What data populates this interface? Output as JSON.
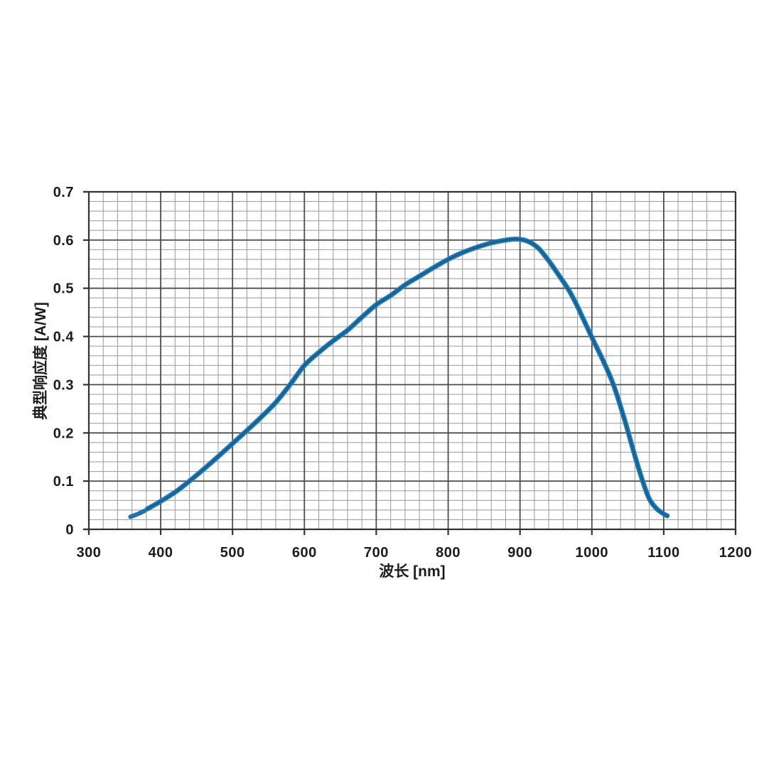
{
  "figure": {
    "background_color": "#ffffff",
    "plot_background_color": "#ffffff"
  },
  "chart_data": {
    "type": "line",
    "title": "",
    "xlabel": "波长 [nm]",
    "ylabel": "典型响应度 [A/W]",
    "xlim": [
      300,
      1200
    ],
    "ylim": [
      0,
      0.7
    ],
    "x_major_ticks": [
      300,
      400,
      500,
      600,
      700,
      800,
      900,
      1000,
      1100,
      1200
    ],
    "y_major_ticks": [
      0,
      0.1,
      0.2,
      0.3,
      0.4,
      0.5,
      0.6,
      0.7
    ],
    "x_minor_step_nm": 20,
    "y_minor_step": 0.02,
    "grid": "major-and-minor",
    "legend_position": "none",
    "grid_minor_color": "#989898",
    "grid_major_color": "#4d4d4d",
    "frame_color": "#333333",
    "tick_color": "#333333",
    "label_color": "#1c1c1c",
    "series": [
      {
        "name": "typical-responsivity",
        "style": "solid",
        "color": "#1b76b0",
        "edge_color": "#2f86b8",
        "core_color": "#135f96",
        "points": [
          [
            381,
            0.042
          ],
          [
            400,
            0.058
          ],
          [
            420,
            0.077
          ],
          [
            440,
            0.1
          ],
          [
            460,
            0.125
          ],
          [
            480,
            0.151
          ],
          [
            500,
            0.178
          ],
          [
            520,
            0.205
          ],
          [
            540,
            0.233
          ],
          [
            560,
            0.263
          ],
          [
            580,
            0.3
          ],
          [
            600,
            0.34
          ],
          [
            620,
            0.367
          ],
          [
            640,
            0.391
          ],
          [
            660,
            0.413
          ],
          [
            680,
            0.44
          ],
          [
            700,
            0.466
          ],
          [
            720,
            0.485
          ],
          [
            740,
            0.507
          ],
          [
            760,
            0.525
          ],
          [
            780,
            0.543
          ],
          [
            800,
            0.56
          ],
          [
            820,
            0.574
          ],
          [
            840,
            0.585
          ],
          [
            860,
            0.594
          ],
          [
            880,
            0.6
          ],
          [
            895,
            0.602
          ],
          [
            910,
            0.598
          ],
          [
            925,
            0.584
          ],
          [
            940,
            0.557
          ],
          [
            955,
            0.525
          ],
          [
            968,
            0.496
          ],
          [
            980,
            0.462
          ],
          [
            1000,
            0.398
          ],
          [
            1015,
            0.352
          ],
          [
            1030,
            0.3
          ],
          [
            1045,
            0.23
          ],
          [
            1060,
            0.152
          ],
          [
            1070,
            0.103
          ],
          [
            1080,
            0.063
          ],
          [
            1090,
            0.043
          ],
          [
            1100,
            0.032
          ],
          [
            1105,
            0.028
          ]
        ]
      },
      {
        "name": "typical-responsivity-uv-dashed-start",
        "style": "dashed",
        "color": "#1b76b0",
        "segments": [
          [
            [
              358,
              0.026
            ],
            [
              367,
              0.031
            ]
          ],
          [
            [
              370,
              0.033
            ],
            [
              377,
              0.038
            ]
          ]
        ]
      }
    ]
  }
}
